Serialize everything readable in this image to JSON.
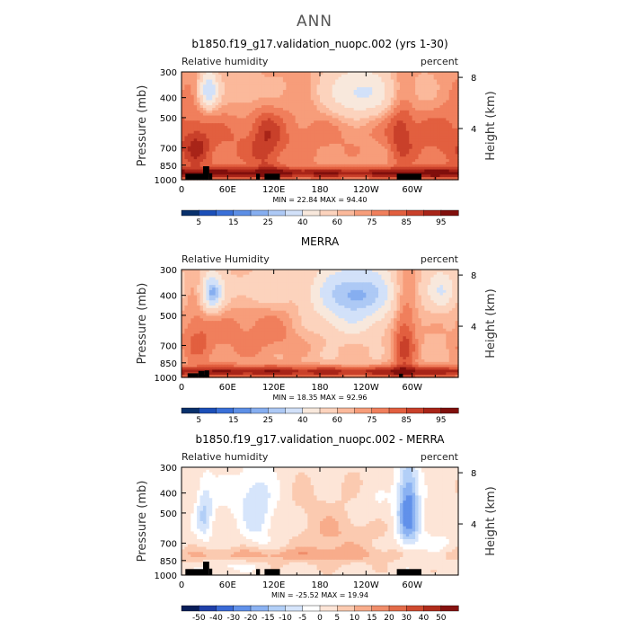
{
  "figure": {
    "title": "ANN"
  },
  "colors": {
    "rh": [
      "#08306b",
      "#1c4fb8",
      "#3a70d8",
      "#5d8fe6",
      "#86aef0",
      "#adc9f5",
      "#d2e1f9",
      "#f8e8dc",
      "#fcd3bd",
      "#fbb99b",
      "#f79d7a",
      "#f07f5c",
      "#e25f3f",
      "#c9402a",
      "#a82418",
      "#800f0c"
    ],
    "diff": [
      "#081d58",
      "#1f3fa8",
      "#3a6ad6",
      "#6191ea",
      "#8bb2f2",
      "#b2cff7",
      "#d6e5fb",
      "#ffffff",
      "#fde5d7",
      "#fbcab0",
      "#f8ac8b",
      "#f08d6a",
      "#e36b49",
      "#cf4a2f",
      "#b02c1b",
      "#861210"
    ]
  },
  "chart_data": [
    {
      "type": "heatmap",
      "title": "b1850.f19_g17.validation_nuopc.002 (yrs 1-30)",
      "left_label": "Relative humidity",
      "right_label": "percent",
      "ylabel": "Pressure (mb)",
      "y2label": "Height (km)",
      "x_ticks": [
        "0",
        "60E",
        "120E",
        "180",
        "120W",
        "60W"
      ],
      "x_tick_values": [
        0,
        60,
        120,
        180,
        240,
        300
      ],
      "xlim": [
        0,
        360
      ],
      "y_ticks": [
        "300",
        "400",
        "500",
        "700",
        "850",
        "1000"
      ],
      "y_tick_values": [
        300,
        400,
        500,
        700,
        850,
        1000
      ],
      "ylim": [
        300,
        1000
      ],
      "y2_ticks": [
        "8",
        "4"
      ],
      "y2_tick_values": [
        8,
        4
      ],
      "stats": "MIN =   22.84   MAX =   94.40",
      "colorbar_labels": [
        "5",
        "15",
        "25",
        "40",
        "60",
        "75",
        "85",
        "95"
      ],
      "field": {
        "base": 66,
        "blobs": [
          {
            "lon": 75,
            "p": 720,
            "dlon": 85,
            "dp": 180,
            "v": 10
          },
          {
            "lon": 200,
            "p": 700,
            "dlon": 110,
            "dp": 170,
            "v": 6
          },
          {
            "lon": 330,
            "p": 650,
            "dlon": 40,
            "dp": 260,
            "v": 7
          },
          {
            "lon": 35,
            "p": 370,
            "dlon": 9,
            "dp": 55,
            "v": -38
          },
          {
            "lon": 230,
            "p": 380,
            "dlon": 30,
            "dp": 80,
            "v": -30
          },
          {
            "lon": 95,
            "p": 380,
            "dlon": 25,
            "dp": 70,
            "v": -10
          },
          {
            "lon": 300,
            "p": 380,
            "dlon": 28,
            "dp": 70,
            "v": -8
          },
          {
            "lon": 20,
            "p": 700,
            "dlon": 12,
            "dp": 120,
            "v": 12
          },
          {
            "lon": 110,
            "p": 650,
            "dlon": 14,
            "dp": 250,
            "v": 10
          },
          {
            "lon": 285,
            "p": 560,
            "dlon": 12,
            "dp": 220,
            "v": 12
          },
          {
            "lon": 180,
            "p": 760,
            "dlon": 200,
            "dp": 130,
            "v": -6
          }
        ],
        "bl": 22,
        "bl_p": 930,
        "bl_dp": 55,
        "min": 22.84,
        "max": 94.4
      },
      "terrain": [
        {
          "lon0": 5,
          "lon1": 28,
          "p": 935
        },
        {
          "lon0": 28,
          "lon1": 36,
          "p": 860
        },
        {
          "lon0": 36,
          "lon1": 40,
          "p": 930
        },
        {
          "lon0": 97,
          "lon1": 102,
          "p": 935
        },
        {
          "lon0": 108,
          "lon1": 128,
          "p": 935
        },
        {
          "lon0": 280,
          "lon1": 312,
          "p": 935
        }
      ]
    },
    {
      "type": "heatmap",
      "title": "MERRA",
      "left_label": "Relative Humidity",
      "right_label": "percent",
      "ylabel": "Pressure (mb)",
      "y2label": "Height (km)",
      "x_ticks": [
        "0",
        "60E",
        "120E",
        "180",
        "120W",
        "60W"
      ],
      "x_tick_values": [
        0,
        60,
        120,
        180,
        240,
        300
      ],
      "xlim": [
        0,
        360
      ],
      "y_ticks": [
        "300",
        "400",
        "500",
        "700",
        "850",
        "1000"
      ],
      "y_tick_values": [
        300,
        400,
        500,
        700,
        850,
        1000
      ],
      "ylim": [
        300,
        1000
      ],
      "y2_ticks": [
        "8",
        "4"
      ],
      "y2_tick_values": [
        8,
        4
      ],
      "stats": "MIN =   18.35   MAX =   92.96",
      "colorbar_labels": [
        "5",
        "15",
        "25",
        "40",
        "60",
        "75",
        "85",
        "95"
      ],
      "field": {
        "base": 62,
        "blobs": [
          {
            "lon": 110,
            "p": 650,
            "dlon": 70,
            "dp": 200,
            "v": 12
          },
          {
            "lon": 290,
            "p": 640,
            "dlon": 12,
            "dp": 300,
            "v": 20
          },
          {
            "lon": 40,
            "p": 390,
            "dlon": 10,
            "dp": 60,
            "v": -40
          },
          {
            "lon": 225,
            "p": 390,
            "dlon": 40,
            "dp": 90,
            "v": -40
          },
          {
            "lon": 100,
            "p": 380,
            "dlon": 30,
            "dp": 60,
            "v": -12
          },
          {
            "lon": 340,
            "p": 380,
            "dlon": 14,
            "dp": 60,
            "v": -22
          },
          {
            "lon": 20,
            "p": 650,
            "dlon": 15,
            "dp": 150,
            "v": 10
          },
          {
            "lon": 170,
            "p": 780,
            "dlon": 60,
            "dp": 100,
            "v": -6
          },
          {
            "lon": 210,
            "p": 560,
            "dlon": 40,
            "dp": 80,
            "v": -14
          }
        ],
        "bl": 24,
        "bl_p": 940,
        "bl_dp": 60,
        "min": 18.35,
        "max": 92.96
      },
      "terrain": [
        {
          "lon0": 8,
          "lon1": 22,
          "p": 955
        },
        {
          "lon0": 22,
          "lon1": 30,
          "p": 930
        },
        {
          "lon0": 30,
          "lon1": 36,
          "p": 925
        },
        {
          "lon0": 283,
          "lon1": 288,
          "p": 960
        }
      ]
    },
    {
      "type": "heatmap",
      "title": "b1850.f19_g17.validation_nuopc.002 - MERRA",
      "left_label": "Relative humidity",
      "right_label": "percent",
      "ylabel": "Pressure (mb)",
      "y2label": "Height (km)",
      "x_ticks": [
        "0",
        "60E",
        "120E",
        "180",
        "120W",
        "60W"
      ],
      "x_tick_values": [
        0,
        60,
        120,
        180,
        240,
        300
      ],
      "xlim": [
        0,
        360
      ],
      "y_ticks": [
        "300",
        "400",
        "500",
        "700",
        "850",
        "1000"
      ],
      "y_tick_values": [
        300,
        400,
        500,
        700,
        850,
        1000
      ],
      "ylim": [
        300,
        1000
      ],
      "y2_ticks": [
        "8",
        "4"
      ],
      "y2_tick_values": [
        8,
        4
      ],
      "stats": "MIN =  -25.52   MAX =   19.94",
      "colorbar_labels": [
        "-50",
        "-40",
        "-30",
        "-20",
        "-15",
        "-10",
        "-5",
        "0",
        "5",
        "10",
        "15",
        "20",
        "30",
        "40",
        "50"
      ],
      "field": {
        "base": 3,
        "blobs": [
          {
            "lon": 295,
            "p": 480,
            "dlon": 10,
            "dp": 160,
            "v": -28
          },
          {
            "lon": 30,
            "p": 500,
            "dlon": 8,
            "dp": 110,
            "v": -14
          },
          {
            "lon": 100,
            "p": 500,
            "dlon": 14,
            "dp": 150,
            "v": -10
          },
          {
            "lon": 80,
            "p": 420,
            "dlon": 20,
            "dp": 80,
            "v": -6
          },
          {
            "lon": 200,
            "p": 620,
            "dlon": 35,
            "dp": 160,
            "v": 7
          },
          {
            "lon": 120,
            "p": 800,
            "dlon": 130,
            "dp": 45,
            "v": 9
          },
          {
            "lon": 330,
            "p": 720,
            "dlon": 20,
            "dp": 100,
            "v": -5
          },
          {
            "lon": 60,
            "p": 900,
            "dlon": 25,
            "dp": 40,
            "v": -5
          },
          {
            "lon": 240,
            "p": 470,
            "dlon": 25,
            "dp": 60,
            "v": -4
          }
        ],
        "bl": 0,
        "bl_p": 940,
        "bl_dp": 60,
        "min": -25.52,
        "max": 19.94
      },
      "terrain": [
        {
          "lon0": 5,
          "lon1": 28,
          "p": 935
        },
        {
          "lon0": 28,
          "lon1": 36,
          "p": 860
        },
        {
          "lon0": 36,
          "lon1": 40,
          "p": 930
        },
        {
          "lon0": 97,
          "lon1": 102,
          "p": 935
        },
        {
          "lon0": 108,
          "lon1": 128,
          "p": 935
        },
        {
          "lon0": 280,
          "lon1": 312,
          "p": 935
        }
      ]
    }
  ]
}
